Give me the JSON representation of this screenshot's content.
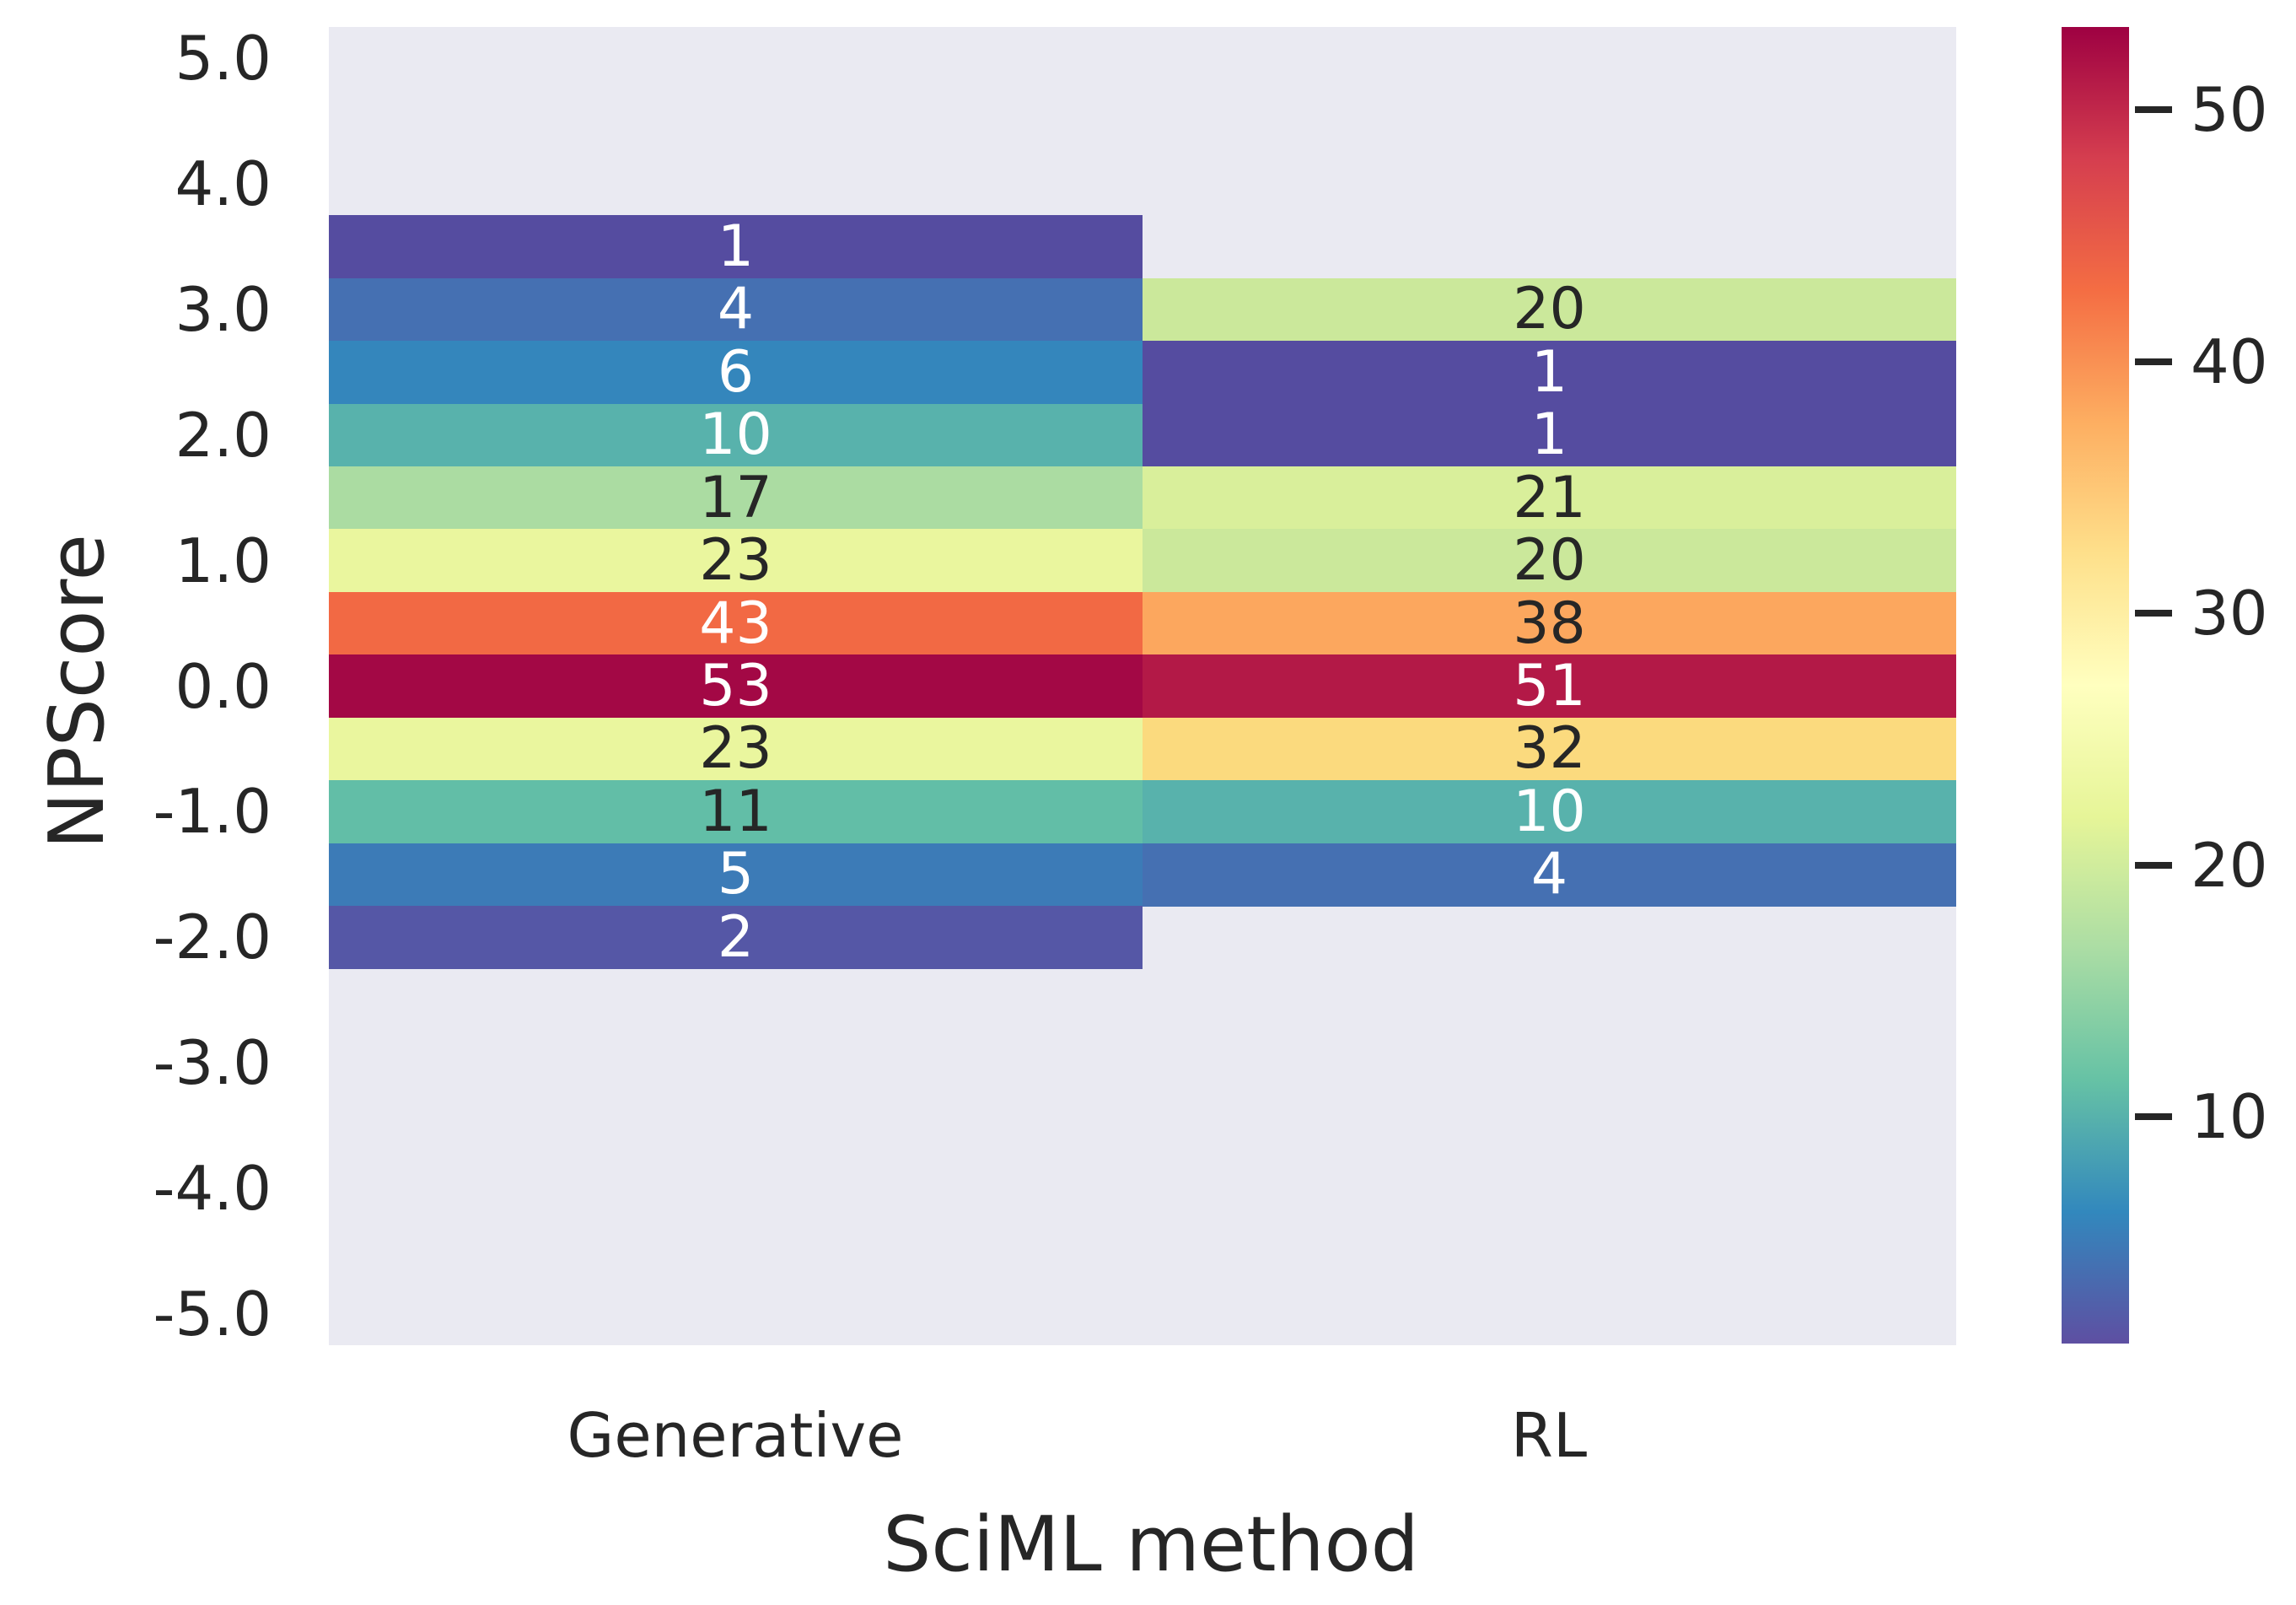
{
  "chart_data": {
    "type": "heatmap",
    "xlabel": "SciML method",
    "ylabel": "NPScore",
    "x_categories": [
      "Generative",
      "RL"
    ],
    "y_tick_labels": [
      "5.0",
      "4.0",
      "3.0",
      "2.0",
      "1.0",
      "0.0",
      "-1.0",
      "-2.0",
      "-3.0",
      "-4.0",
      "-5.0"
    ],
    "y_axis_range": [
      5.0,
      -5.0
    ],
    "y_bin_size": 0.5,
    "plot_background_color": "#eaeaf2",
    "text_color": "#262626",
    "cells": [
      {
        "column": "Generative",
        "npscore": 3.5,
        "value": 1,
        "color": "#554CA0",
        "text_color": "#ffffff"
      },
      {
        "column": "Generative",
        "npscore": 3.0,
        "value": 4,
        "color": "#4570B2",
        "text_color": "#ffffff"
      },
      {
        "column": "Generative",
        "npscore": 2.5,
        "value": 6,
        "color": "#3486BC",
        "text_color": "#ffffff"
      },
      {
        "column": "Generative",
        "npscore": 2.0,
        "value": 10,
        "color": "#58B2AC",
        "text_color": "#ffffff"
      },
      {
        "column": "Generative",
        "npscore": 1.5,
        "value": 17,
        "color": "#ABDCA2",
        "text_color": "#262626"
      },
      {
        "column": "Generative",
        "npscore": 1.0,
        "value": 23,
        "color": "#EAF69E",
        "text_color": "#262626"
      },
      {
        "column": "Generative",
        "npscore": 0.5,
        "value": 43,
        "color": "#F26944",
        "text_color": "#ffffff"
      },
      {
        "column": "Generative",
        "npscore": 0.0,
        "value": 53,
        "color": "#A30845",
        "text_color": "#ffffff"
      },
      {
        "column": "Generative",
        "npscore": -0.5,
        "value": 23,
        "color": "#EAF69E",
        "text_color": "#262626"
      },
      {
        "column": "Generative",
        "npscore": -1.0,
        "value": 11,
        "color": "#62BEA7",
        "text_color": "#262626"
      },
      {
        "column": "Generative",
        "npscore": -1.5,
        "value": 5,
        "color": "#3C7BB7",
        "text_color": "#ffffff"
      },
      {
        "column": "Generative",
        "npscore": -2.0,
        "value": 2,
        "color": "#5557A6",
        "text_color": "#ffffff"
      },
      {
        "column": "RL",
        "npscore": 3.0,
        "value": 20,
        "color": "#CBE89B",
        "text_color": "#262626"
      },
      {
        "column": "RL",
        "npscore": 2.5,
        "value": 1,
        "color": "#554CA0",
        "text_color": "#ffffff"
      },
      {
        "column": "RL",
        "npscore": 2.0,
        "value": 1,
        "color": "#554CA0",
        "text_color": "#ffffff"
      },
      {
        "column": "RL",
        "npscore": 1.5,
        "value": 21,
        "color": "#D9EF9B",
        "text_color": "#262626"
      },
      {
        "column": "RL",
        "npscore": 1.0,
        "value": 20,
        "color": "#CBE89B",
        "text_color": "#262626"
      },
      {
        "column": "RL",
        "npscore": 0.5,
        "value": 38,
        "color": "#FCA75E",
        "text_color": "#262626"
      },
      {
        "column": "RL",
        "npscore": 0.0,
        "value": 51,
        "color": "#B31947",
        "text_color": "#ffffff"
      },
      {
        "column": "RL",
        "npscore": -0.5,
        "value": 32,
        "color": "#FBDA7E",
        "text_color": "#262626"
      },
      {
        "column": "RL",
        "npscore": -1.0,
        "value": 10,
        "color": "#58B2AC",
        "text_color": "#ffffff"
      },
      {
        "column": "RL",
        "npscore": -1.5,
        "value": 4,
        "color": "#4570B2",
        "text_color": "#ffffff"
      }
    ],
    "colorbar": {
      "colormap": "Spectral_r",
      "vmin": 1,
      "vmax": 53,
      "ticks": [
        10,
        20,
        30,
        40,
        50
      ],
      "gradient_bottom_to_top": [
        "#5e4fa2",
        "#3288bd",
        "#66c2a5",
        "#abdda4",
        "#e6f598",
        "#ffffbf",
        "#fee08b",
        "#fdae61",
        "#f46d43",
        "#d53e4f",
        "#9e0142"
      ]
    },
    "legend_position": "right",
    "grid": false
  }
}
